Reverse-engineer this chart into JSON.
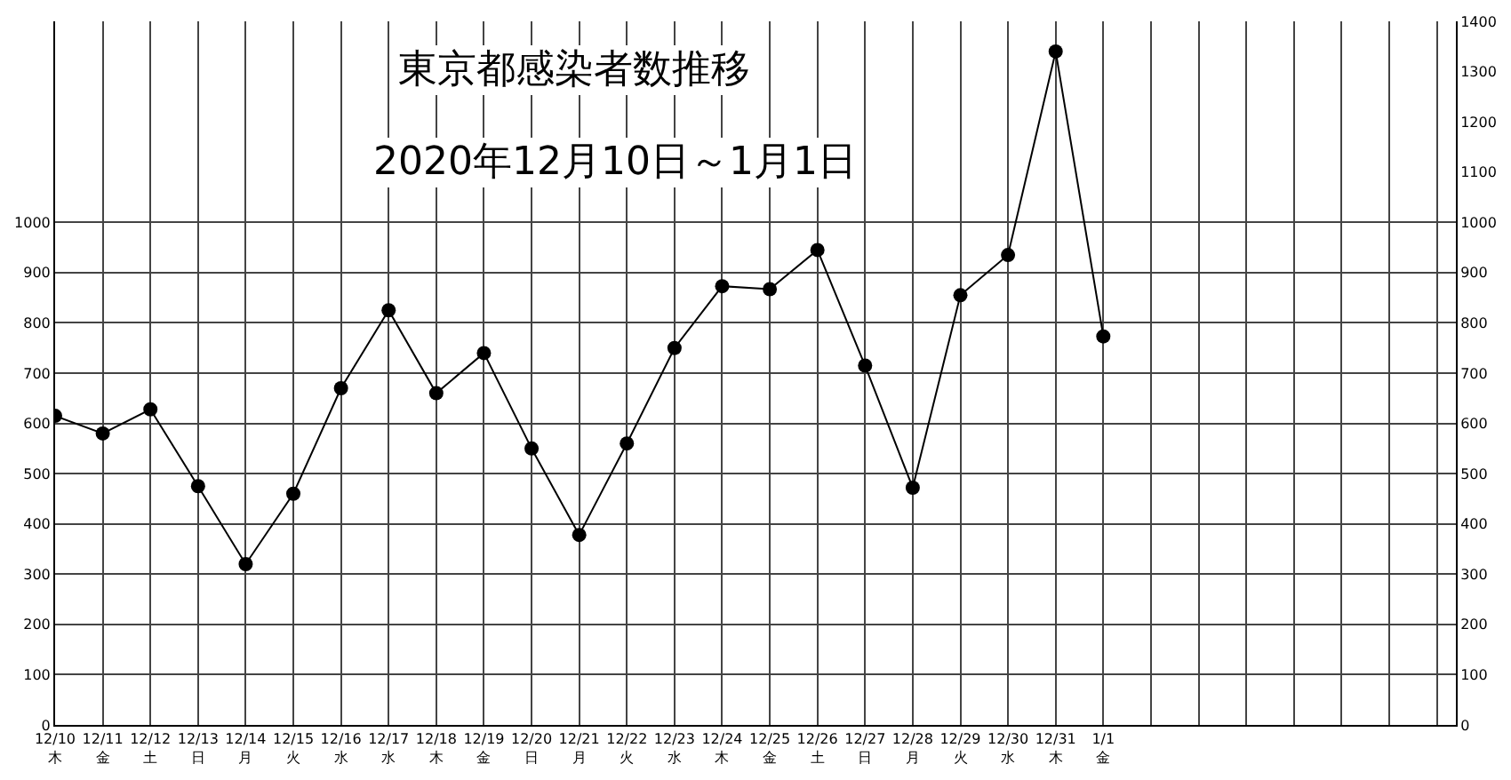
{
  "chart_data": {
    "type": "line",
    "title": "東京都感染者数推移",
    "subtitle": "2020年12月10日～1月1日",
    "categories": [
      "12/10\n木",
      "12/11\n金",
      "12/12\n土",
      "12/13\n日",
      "12/14\n月",
      "12/15\n火",
      "12/16\n水",
      "12/17\n水",
      "12/18\n木",
      "12/19\n金",
      "12/20\n日",
      "12/21\n月",
      "12/22\n火",
      "12/23\n水",
      "12/24\n木",
      "12/25\n金",
      "12/26\n土",
      "12/27\n日",
      "12/28\n月",
      "12/29\n火",
      "12/30\n水",
      "12/31\n木",
      "1/1\n金",
      null,
      null,
      null,
      null,
      null,
      null,
      null
    ],
    "series": [
      {
        "color": "#000000",
        "values": [
          615,
          580,
          628,
          475,
          320,
          460,
          670,
          825,
          660,
          740,
          550,
          378,
          560,
          750,
          873,
          867,
          945,
          715,
          472,
          855,
          935,
          1340,
          773,
          null,
          null,
          null,
          null,
          null,
          null,
          null
        ]
      }
    ],
    "ylim": [
      0,
      1400
    ],
    "yticks": [
      0,
      100,
      200,
      300,
      400,
      500,
      600,
      700,
      800,
      900,
      1000
    ],
    "y2lim": [
      0,
      1400
    ],
    "y2ticks": [
      0,
      100,
      200,
      300,
      400,
      500,
      600,
      700,
      800,
      900,
      1000,
      1100,
      1200,
      1300,
      1400
    ],
    "grid": true,
    "marker": "circle",
    "line_style": "solid"
  }
}
